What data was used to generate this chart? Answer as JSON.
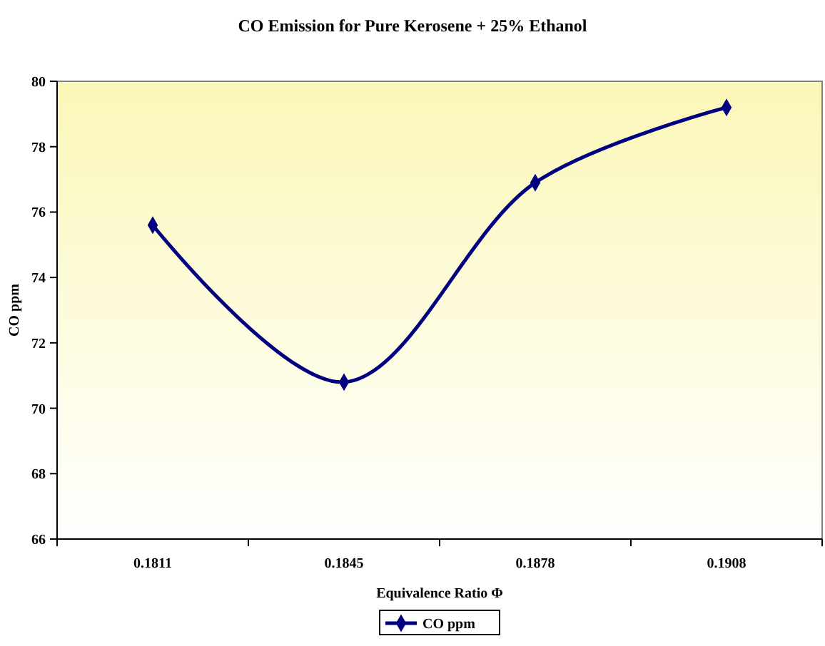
{
  "chart_data": {
    "type": "line",
    "title": "CO  Emission for Pure Kerosene + 25% Ethanol",
    "xlabel": "Equivalence Ratio Φ",
    "ylabel": "CO ppm",
    "categories": [
      "0.1811",
      "0.1845",
      "0.1878",
      "0.1908"
    ],
    "series": [
      {
        "name": "CO ppm",
        "color": "#000080",
        "values": [
          75.6,
          70.8,
          76.9,
          79.2
        ]
      }
    ],
    "ylim": [
      66,
      80
    ],
    "yticks": [
      66,
      68,
      70,
      72,
      74,
      76,
      78,
      80
    ],
    "grid": false,
    "legend": "bottom",
    "marker": "diamond",
    "line_style": "solid"
  }
}
